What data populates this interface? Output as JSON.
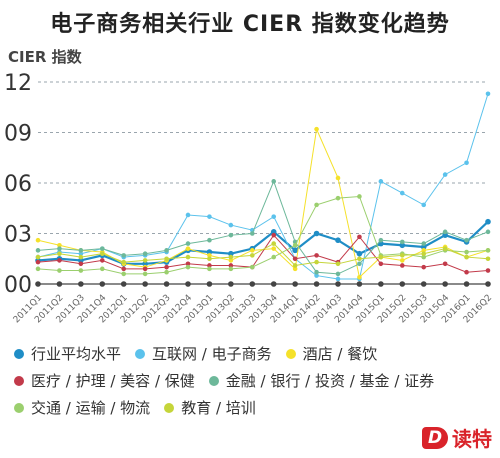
{
  "chart_data": {
    "type": "line",
    "title": "电子商务相关行业 CIER 指数变化趋势",
    "ylabel": "CIER 指数",
    "xlabel": "",
    "ylim": [
      0,
      12
    ],
    "yticks": [
      0,
      3,
      6,
      9,
      12
    ],
    "ytick_labels": [
      "00",
      "03",
      "06",
      "09",
      "12"
    ],
    "grid": "horizontal dashed",
    "legend_position": "bottom",
    "categories": [
      "2011Q1",
      "2011Q2",
      "2011Q3",
      "2011Q4",
      "2012Q1",
      "2012Q2",
      "2012Q3",
      "2012Q4",
      "2013Q1",
      "2013Q2",
      "2013Q3",
      "2013Q4",
      "2014Q1",
      "2014Q2",
      "2014Q3",
      "2014Q4",
      "2015Q1",
      "2015Q2",
      "2015Q3",
      "2015Q4",
      "2016Q1",
      "2016Q2"
    ],
    "series": [
      {
        "name": "行业平均水平",
        "color": "#1f8dc6",
        "values": [
          1.4,
          1.5,
          1.4,
          1.7,
          1.2,
          1.2,
          1.3,
          2.0,
          1.9,
          1.8,
          2.1,
          3.1,
          2.0,
          3.0,
          2.6,
          1.8,
          2.4,
          2.3,
          2.2,
          2.9,
          2.5,
          3.7
        ]
      },
      {
        "name": "互联网 / 电子商务",
        "color": "#5bc2ec",
        "values": [
          1.6,
          1.9,
          1.8,
          2.1,
          1.6,
          1.7,
          1.9,
          4.1,
          4.0,
          3.5,
          3.2,
          4.0,
          1.5,
          0.5,
          0.3,
          0.3,
          6.1,
          5.4,
          4.7,
          6.5,
          7.2,
          11.3
        ]
      },
      {
        "name": "酒店 / 餐饮",
        "color": "#f5e12a",
        "values": [
          2.6,
          2.3,
          2.0,
          1.9,
          1.2,
          1.0,
          1.4,
          2.1,
          1.7,
          1.4,
          2.0,
          2.1,
          0.9,
          9.2,
          6.3,
          0.4,
          1.6,
          1.4,
          2.0,
          2.2,
          1.6,
          2.0
        ]
      },
      {
        "name": "医疗 / 护理 / 美容 / 保健",
        "color": "#c23a4a",
        "values": [
          1.3,
          1.4,
          1.2,
          1.4,
          0.9,
          0.9,
          1.0,
          1.2,
          1.1,
          1.1,
          1.0,
          2.9,
          1.5,
          1.7,
          1.3,
          2.8,
          1.2,
          1.1,
          1.0,
          1.2,
          0.7,
          0.8
        ]
      },
      {
        "name": "金融 / 银行 / 投资 / 基金 / 证券",
        "color": "#6db89a",
        "values": [
          2.0,
          2.1,
          2.0,
          2.1,
          1.7,
          1.8,
          2.0,
          2.4,
          2.6,
          2.9,
          3.0,
          6.1,
          2.5,
          0.7,
          0.6,
          1.2,
          2.6,
          2.5,
          2.4,
          3.1,
          2.6,
          3.1
        ]
      },
      {
        "name": "交通 / 运输 / 物流",
        "color": "#9bcf6e",
        "values": [
          0.9,
          0.8,
          0.8,
          0.9,
          0.6,
          0.6,
          0.7,
          1.0,
          0.9,
          0.9,
          1.0,
          1.6,
          2.3,
          4.7,
          5.1,
          5.2,
          1.7,
          1.8,
          1.6,
          2.0,
          1.9,
          2.0
        ]
      },
      {
        "name": "教育 / 培训",
        "color": "#c5d53a",
        "values": [
          1.6,
          1.8,
          1.6,
          1.8,
          1.3,
          1.4,
          1.5,
          1.6,
          1.5,
          1.6,
          1.7,
          2.4,
          1.1,
          1.3,
          1.2,
          1.5,
          1.6,
          1.7,
          1.8,
          2.1,
          1.6,
          1.5
        ]
      }
    ],
    "baseline_color": "#444444"
  },
  "legend_rows": [
    [
      0,
      1,
      2
    ],
    [
      3,
      4
    ],
    [
      5,
      6
    ]
  ],
  "brand": {
    "logo_letter": "D",
    "name": "读特"
  }
}
